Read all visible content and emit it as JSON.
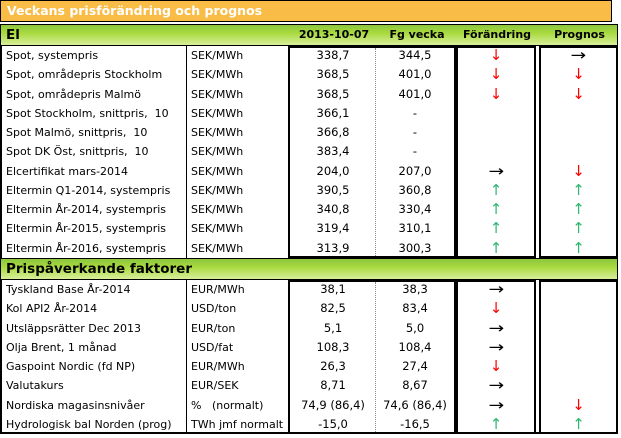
{
  "title": "Veckans prisförändring och prognos",
  "colors": {
    "title_bar_bg": "#F9BC47",
    "title_text": "#FFFFFF",
    "section_bar_gradient_top": "#8DC63F",
    "section_bar_gradient_bottom": "#D8EF9B",
    "arrow_red": "#FF0000",
    "arrow_green": "#2EB872",
    "arrow_black": "#000000"
  },
  "columns": {
    "date": "2013-10-07",
    "prev": "Fg vecka",
    "change": "Förändring",
    "forecast": "Prognos"
  },
  "sections": [
    {
      "name": "El",
      "rows": [
        {
          "label": "Spot, systempris",
          "unit": "SEK/MWh",
          "value": "338,7",
          "prev": "344,5",
          "change": "down-red",
          "forecast": "right-black"
        },
        {
          "label": "Spot, områdepris Stockholm",
          "unit": "SEK/MWh",
          "value": "368,5",
          "prev": "401,0",
          "change": "down-red",
          "forecast": "down-red"
        },
        {
          "label": "Spot, områdepris Malmö",
          "unit": "SEK/MWh",
          "value": "368,5",
          "prev": "401,0",
          "change": "down-red",
          "forecast": "down-red"
        },
        {
          "label": "Spot Stockholm, snittpris,  10",
          "unit": "SEK/MWh",
          "value": "366,1",
          "prev": "-",
          "change": "",
          "forecast": ""
        },
        {
          "label": "Spot Malmö, snittpris,  10",
          "unit": "SEK/MWh",
          "value": "366,8",
          "prev": "-",
          "change": "",
          "forecast": ""
        },
        {
          "label": "Spot DK Öst, snittpris,  10",
          "unit": "SEK/MWh",
          "value": "383,4",
          "prev": "-",
          "change": "",
          "forecast": ""
        },
        {
          "label": "Elcertifikat mars-2014",
          "unit": "SEK/MWh",
          "value": "204,0",
          "prev": "207,0",
          "change": "right-black",
          "forecast": "down-red"
        },
        {
          "label": "Eltermin Q1-2014, systempris",
          "unit": "SEK/MWh",
          "value": "390,5",
          "prev": "360,8",
          "change": "up-green",
          "forecast": "up-green"
        },
        {
          "label": "Eltermin År-2014, systempris",
          "unit": "SEK/MWh",
          "value": "340,8",
          "prev": "330,4",
          "change": "up-green",
          "forecast": "up-green"
        },
        {
          "label": "Eltermin År-2015, systempris",
          "unit": "SEK/MWh",
          "value": "319,4",
          "prev": "310,1",
          "change": "up-green",
          "forecast": "up-green"
        },
        {
          "label": "Eltermin År-2016, systempris",
          "unit": "SEK/MWh",
          "value": "313,9",
          "prev": "300,3",
          "change": "up-green",
          "forecast": "up-green"
        }
      ]
    },
    {
      "name": "Prispåverkande faktorer",
      "rows": [
        {
          "label": "Tyskland Base År-2014",
          "unit": "EUR/MWh",
          "value": "38,1",
          "prev": "38,3",
          "change": "right-black",
          "forecast": ""
        },
        {
          "label": "Kol API2 År-2014",
          "unit": "USD/ton",
          "value": "82,5",
          "prev": "83,4",
          "change": "down-red",
          "forecast": ""
        },
        {
          "label": "Utsläppsrätter Dec 2013",
          "unit": "EUR/ton",
          "value": "5,1",
          "prev": "5,0",
          "change": "right-black",
          "forecast": ""
        },
        {
          "label": "Olja Brent, 1 månad",
          "unit": "USD/fat",
          "value": "108,3",
          "prev": "108,4",
          "change": "right-black",
          "forecast": ""
        },
        {
          "label": "Gaspoint Nordic (fd NP)",
          "unit": "EUR/MWh",
          "value": "26,3",
          "prev": "27,4",
          "change": "down-red",
          "forecast": ""
        },
        {
          "label": "Valutakurs",
          "unit": "EUR/SEK",
          "value": "8,71",
          "prev": "8,67",
          "change": "right-black",
          "forecast": ""
        },
        {
          "label": "Nordiska magasinsnivåer",
          "unit": "%   (normalt)",
          "value": "74,9 (86,4)",
          "prev": "74,6 (86,4)",
          "change": "right-black",
          "forecast": "down-red"
        },
        {
          "label": "Hydrologisk bal Norden (prog)",
          "unit": "TWh jmf normalt",
          "value": "-15,0",
          "prev": "-16,5",
          "change": "up-green",
          "forecast": "up-green"
        }
      ]
    }
  ]
}
